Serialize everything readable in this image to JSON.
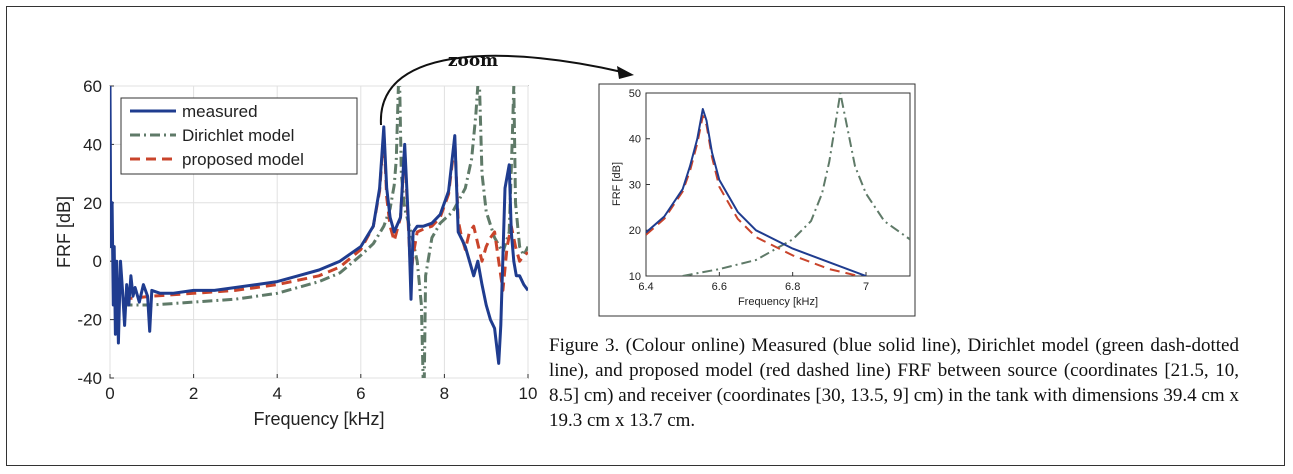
{
  "zoom_label": "zoom",
  "caption": "Figure 3. (Colour online) Measured (blue solid line), Dirichlet model (green dash-dotted line), and proposed model (red dashed line) FRF between source (coordinates [21.5, 10, 8.5] cm) and receiver (coordinates [30, 13.5, 9] cm) in the tank with dimensions 39.4 cm x 19.3 cm x 13.7 cm.",
  "colors": {
    "measured": "#1f3c8f",
    "dirichlet": "#5f7a68",
    "proposed": "#c9442b"
  },
  "chart_data": [
    {
      "type": "line",
      "xlabel": "Frequency [kHz]",
      "ylabel": "FRF [dB]",
      "xlim": [
        0,
        10
      ],
      "ylim": [
        -40,
        60
      ],
      "xticks": [
        "0",
        "2",
        "4",
        "6",
        "8",
        "10"
      ],
      "yticks": [
        "-40",
        "-20",
        "0",
        "20",
        "40",
        "60"
      ],
      "grid": true,
      "legend_position": "top-left",
      "series": [
        {
          "name": "measured",
          "key": "measured",
          "x": [
            0.0,
            0.02,
            0.05,
            0.08,
            0.1,
            0.13,
            0.16,
            0.2,
            0.25,
            0.3,
            0.35,
            0.4,
            0.45,
            0.5,
            0.55,
            0.6,
            0.7,
            0.8,
            0.9,
            0.95,
            1.0,
            1.2,
            1.5,
            2.0,
            2.5,
            3.0,
            3.5,
            4.0,
            4.5,
            5.0,
            5.5,
            6.0,
            6.3,
            6.45,
            6.55,
            6.62,
            6.7,
            6.8,
            6.95,
            7.05,
            7.15,
            7.2,
            7.25,
            7.35,
            7.5,
            7.7,
            7.9,
            8.1,
            8.25,
            8.33,
            8.4,
            8.5,
            8.6,
            8.7,
            8.8,
            8.9,
            9.0,
            9.1,
            9.2,
            9.3,
            9.35,
            9.45,
            9.55,
            9.6,
            9.66,
            9.72,
            9.8,
            9.9,
            10.0
          ],
          "y": [
            60,
            5,
            20,
            -15,
            5,
            -25,
            0,
            -28,
            0,
            -10,
            -22,
            -8,
            -15,
            -5,
            -12,
            -9,
            -14,
            -8,
            -12,
            -24,
            -10,
            -11,
            -11,
            -10,
            -10,
            -9,
            -8,
            -7,
            -5,
            -3,
            0,
            5,
            12,
            25,
            46,
            25,
            15,
            10,
            15,
            40,
            10,
            -13,
            10,
            12,
            12,
            13,
            16,
            24,
            43,
            10,
            8,
            5,
            0,
            -5,
            0,
            -8,
            -15,
            -20,
            -23,
            -35,
            -22,
            25,
            33,
            10,
            0,
            -5,
            -5,
            -8,
            -10
          ]
        },
        {
          "name": "Dirichlet model",
          "key": "dirichlet",
          "x": [
            0.3,
            1.0,
            2.0,
            3.0,
            4.0,
            5.0,
            5.5,
            6.0,
            6.3,
            6.55,
            6.7,
            6.8,
            6.85,
            6.9,
            6.93,
            6.97,
            7.05,
            7.2,
            7.35,
            7.45,
            7.49,
            7.52,
            7.55,
            7.7,
            7.9,
            8.2,
            8.5,
            8.65,
            8.75,
            8.8,
            8.84,
            8.9,
            9.0,
            9.2,
            9.4,
            9.55,
            9.62,
            9.66,
            9.7,
            9.8,
            9.9,
            10.0
          ],
          "y": [
            -15,
            -15,
            -14,
            -13,
            -11,
            -7,
            -4,
            2,
            6,
            12,
            18,
            26,
            35,
            60,
            60,
            30,
            18,
            10,
            0,
            -15,
            -40,
            -40,
            -5,
            8,
            13,
            17,
            25,
            35,
            50,
            60,
            60,
            30,
            17,
            8,
            3,
            10,
            40,
            60,
            20,
            5,
            2,
            5
          ]
        },
        {
          "name": "proposed model",
          "key": "proposed",
          "x": [
            0.3,
            1.0,
            2.0,
            3.0,
            4.0,
            5.0,
            5.5,
            6.0,
            6.3,
            6.45,
            6.55,
            6.62,
            6.7,
            6.8,
            6.95,
            7.05,
            7.15,
            7.2,
            7.25,
            7.35,
            7.5,
            7.7,
            7.9,
            8.1,
            8.25,
            8.33,
            8.4,
            8.5,
            8.6,
            8.7,
            8.8,
            8.9,
            9.0,
            9.1,
            9.2,
            9.3,
            9.4,
            9.5,
            9.6,
            9.7,
            9.8,
            9.9,
            10.0
          ],
          "y": [
            -13,
            -12,
            -11,
            -10,
            -8,
            -5,
            -2,
            4,
            12,
            24,
            44,
            22,
            12,
            7,
            15,
            38,
            8,
            -5,
            2,
            10,
            11,
            12,
            15,
            23,
            41,
            14,
            9,
            4,
            10,
            12,
            6,
            0,
            5,
            8,
            10,
            0,
            -10,
            5,
            12,
            5,
            0,
            2,
            3
          ]
        }
      ]
    },
    {
      "type": "line",
      "xlabel": "Frequency [kHz]",
      "ylabel": "FRF [dB]",
      "xlim": [
        6.4,
        7.12
      ],
      "ylim": [
        10,
        50
      ],
      "xticks": [
        "6.4",
        "6.6",
        "6.8",
        "7"
      ],
      "yticks": [
        "10",
        "20",
        "30",
        "40",
        "50"
      ],
      "grid": false,
      "series": [
        {
          "key": "measured",
          "x": [
            6.4,
            6.45,
            6.5,
            6.52,
            6.54,
            6.555,
            6.565,
            6.58,
            6.6,
            6.65,
            6.7,
            6.8,
            6.9,
            7.0
          ],
          "y": [
            19.5,
            23,
            29,
            34,
            40,
            46.5,
            44,
            37,
            31,
            24,
            20,
            16,
            13,
            10
          ]
        },
        {
          "key": "dirichlet",
          "x": [
            6.5,
            6.6,
            6.7,
            6.8,
            6.85,
            6.88,
            6.9,
            6.92,
            6.93,
            6.95,
            6.97,
            7.0,
            7.05,
            7.12
          ],
          "y": [
            10,
            11.5,
            13.5,
            18,
            22,
            28,
            35,
            45,
            50,
            42,
            34,
            28,
            22,
            18
          ]
        },
        {
          "key": "proposed",
          "x": [
            6.4,
            6.45,
            6.5,
            6.52,
            6.54,
            6.555,
            6.565,
            6.58,
            6.6,
            6.65,
            6.7,
            6.8,
            6.9,
            6.98
          ],
          "y": [
            19,
            22.5,
            28.5,
            33,
            39,
            45,
            43,
            36,
            29.5,
            22.5,
            18.5,
            14.5,
            11.5,
            10
          ]
        }
      ]
    }
  ]
}
